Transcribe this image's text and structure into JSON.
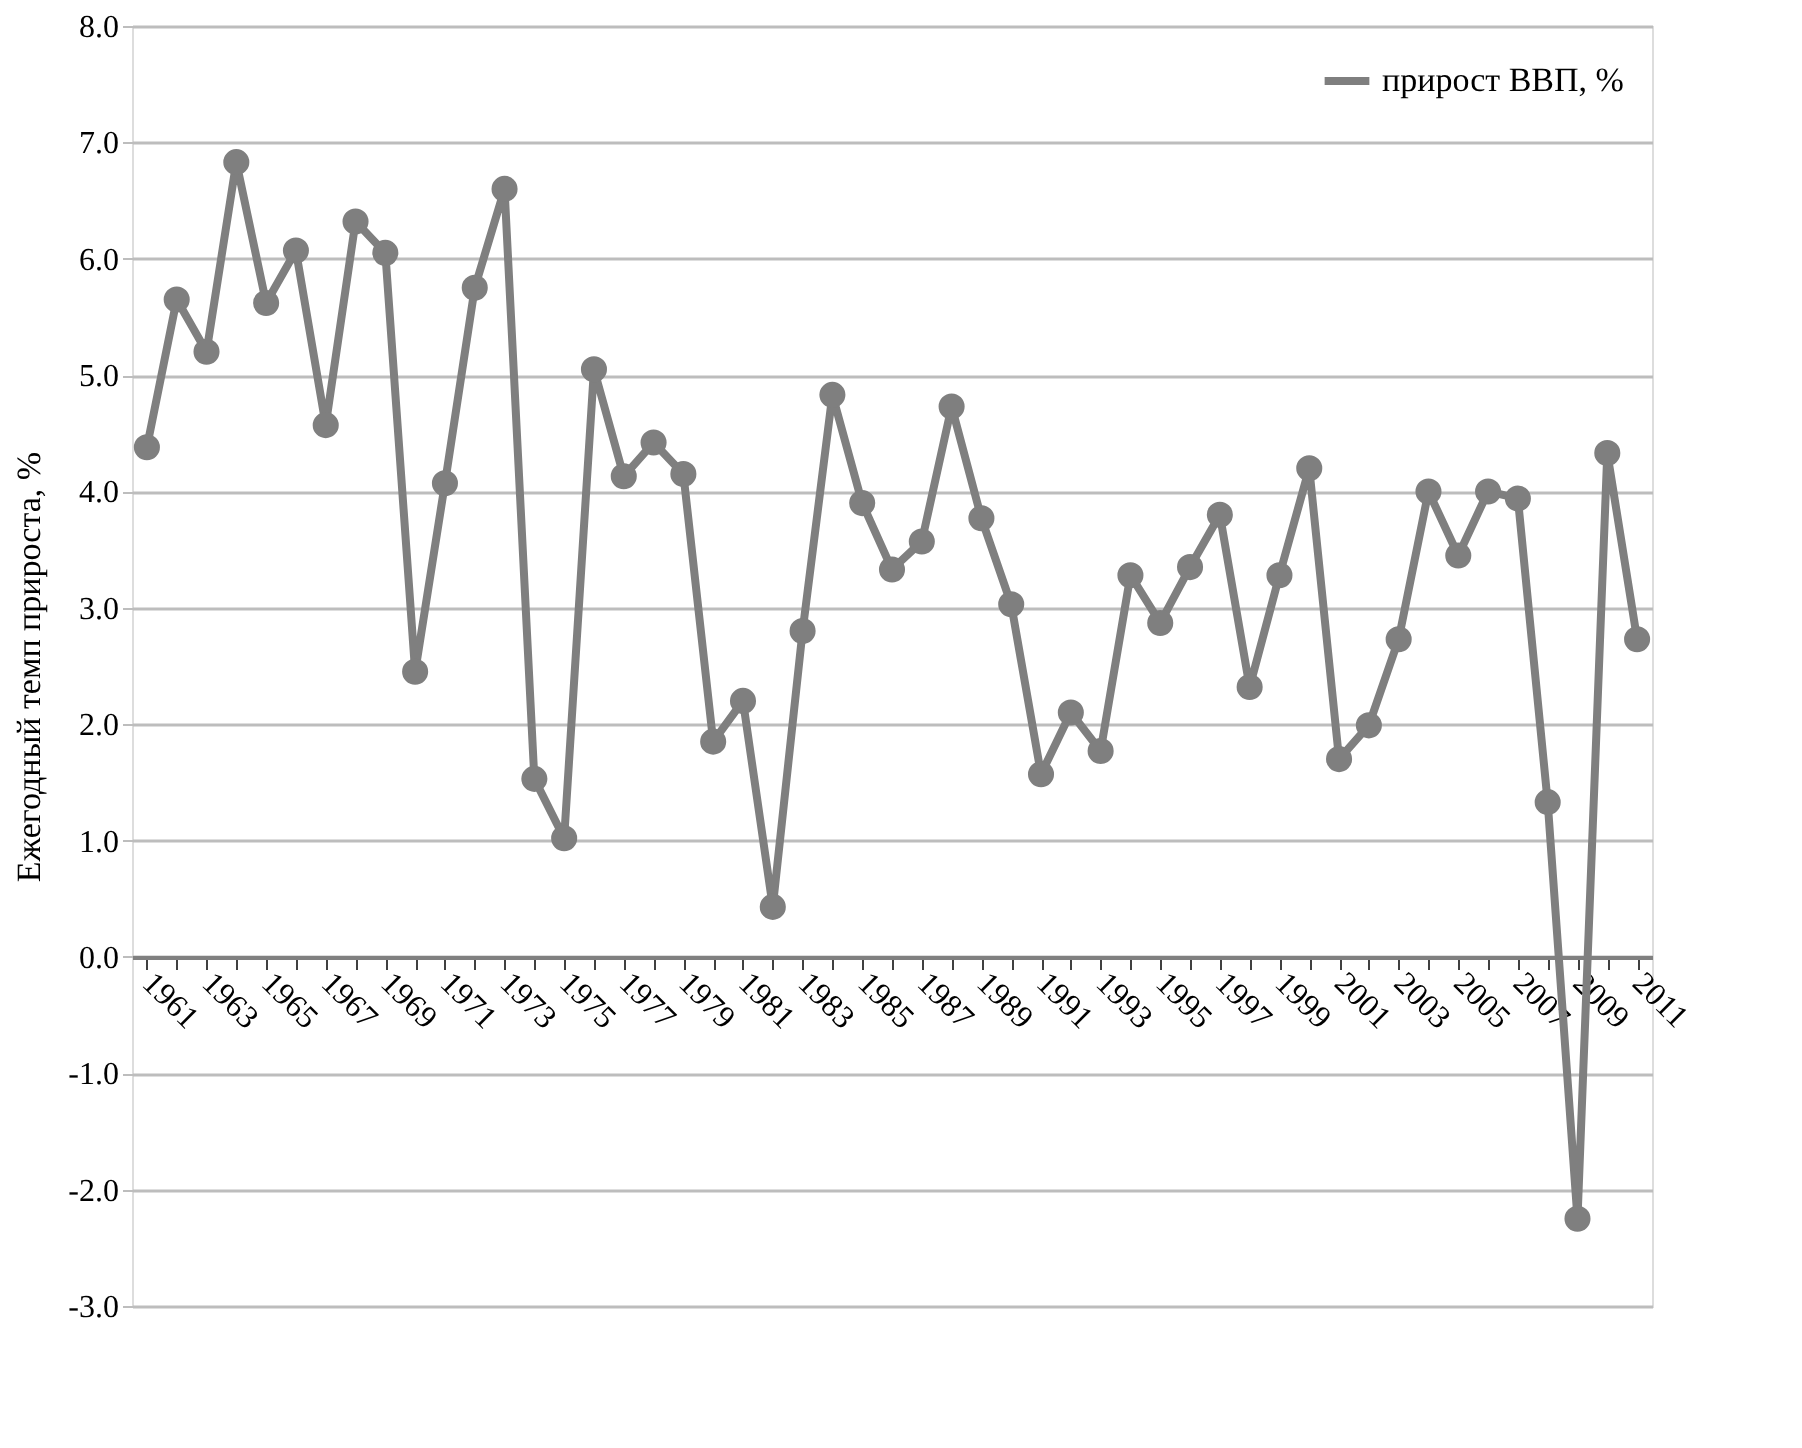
{
  "chart_data": {
    "type": "line",
    "ylabel": "Ежегодный темп прироста, %",
    "categories": [
      "1961",
      null,
      "1963",
      null,
      "1965",
      null,
      "1967",
      null,
      "1969",
      null,
      "1971",
      null,
      "1973",
      null,
      "1975",
      null,
      "1977",
      null,
      "1979",
      null,
      "1981",
      null,
      "1983",
      null,
      "1985",
      null,
      "1987",
      null,
      "1989",
      null,
      "1991",
      null,
      "1993",
      null,
      "1995",
      null,
      "1997",
      null,
      "1999",
      null,
      "2001",
      null,
      "2003",
      null,
      "2005",
      null,
      "2007",
      null,
      "2009",
      null,
      "2011"
    ],
    "series": [
      {
        "name": "прирост ВВП, %",
        "color": "#7f7f7f",
        "values": [
          4.38,
          5.65,
          5.2,
          6.83,
          5.62,
          6.07,
          4.57,
          6.32,
          6.05,
          2.45,
          4.07,
          5.75,
          6.6,
          1.53,
          1.02,
          5.05,
          4.13,
          4.42,
          4.15,
          1.85,
          2.2,
          0.43,
          2.8,
          4.83,
          3.9,
          3.33,
          3.57,
          4.73,
          3.77,
          3.03,
          1.57,
          2.1,
          1.77,
          3.28,
          2.87,
          3.35,
          3.8,
          2.32,
          3.28,
          4.2,
          1.7,
          1.99,
          2.73,
          4.0,
          3.45,
          4.0,
          3.94,
          1.33,
          -2.25,
          4.33,
          2.73
        ]
      }
    ],
    "ylim": [
      -3.0,
      8.0
    ],
    "yticks": [
      {
        "value": -3,
        "label": "-3.0"
      },
      {
        "value": -2,
        "label": "-2.0"
      },
      {
        "value": -1,
        "label": "-1.0"
      },
      {
        "value": 0,
        "label": "0.0"
      },
      {
        "value": 1,
        "label": "1.0"
      },
      {
        "value": 2,
        "label": "2.0"
      },
      {
        "value": 3,
        "label": "3.0"
      },
      {
        "value": 4,
        "label": "4.0"
      },
      {
        "value": 5,
        "label": "5.0"
      },
      {
        "value": 6,
        "label": "6.0"
      },
      {
        "value": 7,
        "label": "7.0"
      },
      {
        "value": 8,
        "label": "8.0"
      }
    ],
    "grid": "y",
    "legend": "top right",
    "marker": "circle",
    "line_style": "solid"
  }
}
